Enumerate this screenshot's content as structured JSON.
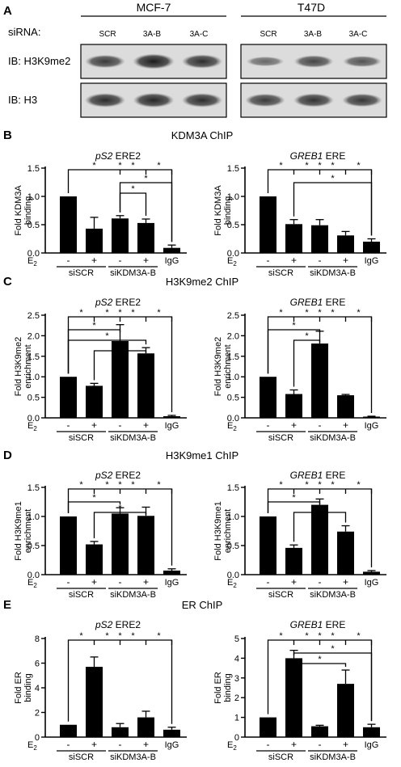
{
  "panel_a": {
    "letter": "A",
    "cell_lines": [
      "MCF-7",
      "T47D"
    ],
    "sirna_label": "siRNA:",
    "lanes": [
      "SCR",
      "3A-B",
      "3A-C"
    ],
    "blots": [
      {
        "label": "IB: H3K9me2",
        "mcf7": [
          0.7,
          0.92,
          0.78
        ],
        "t47d": [
          0.35,
          0.62,
          0.5
        ]
      },
      {
        "label": "IB: H3",
        "mcf7": [
          0.8,
          0.85,
          0.8
        ],
        "t47d": [
          0.7,
          0.75,
          0.72
        ]
      }
    ]
  },
  "common": {
    "e2_label": "E",
    "e2_sub": "2",
    "condition_signs": [
      "-",
      "+",
      "-",
      "+"
    ],
    "igg_label": "IgG",
    "groups": [
      "siSCR",
      "siKDM3A-B"
    ],
    "star": "*"
  },
  "panels": [
    {
      "letter": "B",
      "title": "KDM3A ChIP"
    },
    {
      "letter": "C",
      "title": "H3K9me2 ChIP"
    },
    {
      "letter": "D",
      "title": "H3K9me1 ChIP"
    },
    {
      "letter": "E",
      "title": "ER ChIP"
    }
  ],
  "chart_data": [
    {
      "type": "bar",
      "panel": "B",
      "title_italic": "pS2",
      "title_rest": " ERE2",
      "ylabel": [
        "Fold KDM3A",
        "binding"
      ],
      "ylim": [
        0,
        1.5
      ],
      "yticks": [
        "0.0",
        "0.5",
        "1.0",
        "1.5"
      ],
      "values": [
        1.0,
        0.43,
        0.61,
        0.53,
        0.09
      ],
      "errors": [
        0,
        0.2,
        0.05,
        0.07,
        0.05
      ],
      "brackets": [
        [
          0,
          4
        ],
        [
          0,
          2
        ],
        [
          2,
          3
        ],
        [
          3,
          4
        ]
      ],
      "brackets_low": [
        [
          2,
          4
        ],
        [
          2,
          3
        ]
      ]
    },
    {
      "type": "bar",
      "panel": "B",
      "title_italic": "GREB1",
      "title_rest": " ERE",
      "ylabel": [
        "Fold KDM3A",
        "binding"
      ],
      "ylim": [
        0,
        1.5
      ],
      "yticks": [
        "0.0",
        "0.5",
        "1.0",
        "1.5"
      ],
      "values": [
        1.0,
        0.51,
        0.49,
        0.31,
        0.2
      ],
      "errors": [
        0,
        0.08,
        0.1,
        0.07,
        0.05
      ],
      "brackets": [
        [
          0,
          4
        ],
        [
          0,
          1
        ],
        [
          1,
          2
        ],
        [
          2,
          3
        ],
        [
          3,
          4
        ]
      ],
      "brackets_low": [
        [
          1,
          4
        ]
      ]
    },
    {
      "type": "bar",
      "panel": "C",
      "title_italic": "pS2",
      "title_rest": " ERE2",
      "ylabel": [
        "Fold H3K9me2",
        "enrichment"
      ],
      "ylim": [
        0,
        2.5
      ],
      "yticks": [
        "0.0",
        "0.5",
        "1.0",
        "1.5",
        "2.0",
        "2.5"
      ],
      "values": [
        1.0,
        0.78,
        1.87,
        1.57,
        0.04
      ],
      "errors": [
        0,
        0.06,
        0.4,
        0.14,
        0.02
      ],
      "brackets": [
        [
          0,
          4
        ],
        [
          0,
          1
        ],
        [
          1,
          2
        ],
        [
          2,
          3
        ],
        [
          3,
          4
        ]
      ],
      "brackets_low": [
        [
          0,
          2
        ],
        [
          0,
          3
        ],
        [
          1,
          3
        ]
      ]
    },
    {
      "type": "bar",
      "panel": "C",
      "title_italic": "GREB1",
      "title_rest": " ERE",
      "ylabel": [
        "Fold H3K9me2",
        "enrichment"
      ],
      "ylim": [
        0,
        2.5
      ],
      "yticks": [
        "0.0",
        "0.5",
        "1.0",
        "1.5",
        "2.0",
        "2.5"
      ],
      "values": [
        1.0,
        0.58,
        1.81,
        0.55,
        0.03
      ],
      "errors": [
        0,
        0.1,
        0.3,
        0.02,
        0.01
      ],
      "brackets": [
        [
          0,
          4
        ],
        [
          0,
          1
        ],
        [
          1,
          2
        ],
        [
          2,
          3
        ],
        [
          3,
          4
        ]
      ],
      "brackets_low": [
        [
          0,
          2
        ],
        [
          1,
          2
        ]
      ]
    },
    {
      "type": "bar",
      "panel": "D",
      "title_italic": "pS2",
      "title_rest": " ERE2",
      "ylabel": [
        "Fold H3K9me1",
        "enrichment"
      ],
      "ylim": [
        0,
        1.5
      ],
      "yticks": [
        "0.0",
        "0.5",
        "1.0",
        "1.5"
      ],
      "values": [
        1.0,
        0.52,
        1.05,
        1.01,
        0.07
      ],
      "errors": [
        0,
        0.05,
        0.1,
        0.15,
        0.03
      ],
      "brackets": [
        [
          0,
          4
        ],
        [
          0,
          1
        ],
        [
          1,
          2
        ],
        [
          2,
          3
        ],
        [
          3,
          4
        ]
      ],
      "brackets_low": [
        [
          0,
          2
        ],
        [
          1,
          3
        ]
      ]
    },
    {
      "type": "bar",
      "panel": "D",
      "title_italic": "GREB1",
      "title_rest": " ERE",
      "ylabel": [
        "Fold H3K9me1",
        "enrichment"
      ],
      "ylim": [
        0,
        1.5
      ],
      "yticks": [
        "0.0",
        "0.5",
        "1.0",
        "1.5"
      ],
      "values": [
        1.0,
        0.46,
        1.2,
        0.74,
        0.05
      ],
      "errors": [
        0,
        0.05,
        0.1,
        0.1,
        0.02
      ],
      "brackets": [
        [
          0,
          4
        ],
        [
          0,
          1
        ],
        [
          1,
          2
        ],
        [
          2,
          3
        ],
        [
          3,
          4
        ]
      ],
      "brackets_low": [
        [
          0,
          2
        ],
        [
          1,
          3
        ]
      ]
    },
    {
      "type": "bar",
      "panel": "E",
      "title_italic": "pS2",
      "title_rest": " ERE2",
      "ylabel": [
        "Fold ER",
        "binding"
      ],
      "ylim": [
        0,
        8
      ],
      "yticks": [
        "0",
        "2",
        "4",
        "6",
        "8"
      ],
      "values": [
        1.0,
        5.7,
        0.8,
        1.6,
        0.6
      ],
      "errors": [
        0,
        0.8,
        0.3,
        0.5,
        0.2
      ],
      "brackets": [
        [
          0,
          4
        ],
        [
          0,
          1
        ],
        [
          1,
          2
        ],
        [
          2,
          3
        ],
        [
          3,
          4
        ]
      ],
      "brackets_low": []
    },
    {
      "type": "bar",
      "panel": "E",
      "title_italic": "GREB1",
      "title_rest": " ERE",
      "ylabel": [
        "Fold ER",
        "binding"
      ],
      "ylim": [
        0,
        5
      ],
      "yticks": [
        "0",
        "1",
        "2",
        "3",
        "4",
        "5"
      ],
      "values": [
        1.0,
        4.0,
        0.55,
        2.7,
        0.5
      ],
      "errors": [
        0,
        0.4,
        0.05,
        0.7,
        0.15
      ],
      "brackets": [
        [
          0,
          4
        ],
        [
          0,
          1
        ],
        [
          1,
          2
        ],
        [
          2,
          3
        ],
        [
          3,
          4
        ]
      ],
      "brackets_low": [
        [
          1,
          4
        ],
        [
          1,
          3
        ]
      ]
    }
  ]
}
